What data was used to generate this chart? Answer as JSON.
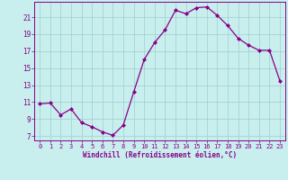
{
  "x": [
    0,
    1,
    2,
    3,
    4,
    5,
    6,
    7,
    8,
    9,
    10,
    11,
    12,
    13,
    14,
    15,
    16,
    17,
    18,
    19,
    20,
    21,
    22,
    23
  ],
  "y": [
    10.8,
    10.9,
    9.5,
    10.2,
    8.6,
    8.1,
    7.5,
    7.1,
    8.3,
    12.2,
    16.0,
    18.0,
    19.5,
    21.8,
    21.4,
    22.1,
    22.2,
    21.2,
    20.0,
    18.5,
    17.7,
    17.1,
    17.1,
    13.5
  ],
  "xlim": [
    -0.5,
    23.5
  ],
  "ylim": [
    6.5,
    22.8
  ],
  "yticks": [
    7,
    9,
    11,
    13,
    15,
    17,
    19,
    21
  ],
  "xticks": [
    0,
    1,
    2,
    3,
    4,
    5,
    6,
    7,
    8,
    9,
    10,
    11,
    12,
    13,
    14,
    15,
    16,
    17,
    18,
    19,
    20,
    21,
    22,
    23
  ],
  "xlabel": "Windchill (Refroidissement éolien,°C)",
  "line_color": "#880088",
  "bg_color": "#c8eeed",
  "grid_color": "#9ecfcf",
  "tick_color": "#880088",
  "label_color": "#880088"
}
